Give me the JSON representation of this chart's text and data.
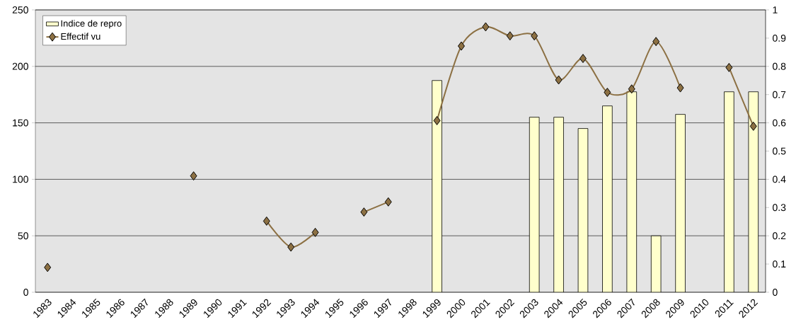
{
  "chart_data": {
    "type": "bar",
    "categories": [
      "1983",
      "1984",
      "1985",
      "1986",
      "1987",
      "1988",
      "1989",
      "1990",
      "1991",
      "1992",
      "1993",
      "1994",
      "1995",
      "1996",
      "1997",
      "1998",
      "1999",
      "2000",
      "2001",
      "2002",
      "2003",
      "2004",
      "2005",
      "2006",
      "2007",
      "2008",
      "2009",
      "2010",
      "2011",
      "2012"
    ],
    "series": [
      {
        "name": "Indice de repro",
        "axis": "y2",
        "color": "#ffffcc",
        "values": [
          null,
          null,
          null,
          null,
          null,
          null,
          null,
          null,
          null,
          null,
          null,
          null,
          null,
          null,
          null,
          null,
          0.75,
          null,
          null,
          null,
          0.62,
          0.62,
          0.58,
          0.66,
          0.71,
          0.2,
          0.63,
          null,
          0.71,
          0.71
        ]
      },
      {
        "name": "Effectif vu",
        "type": "line",
        "color": "#8c7043",
        "values": [
          22,
          null,
          null,
          null,
          null,
          null,
          103,
          null,
          null,
          63,
          40,
          53,
          null,
          71,
          80,
          null,
          152,
          218,
          235,
          227,
          227,
          188,
          207,
          177,
          180,
          222,
          181,
          null,
          199,
          147
        ]
      }
    ],
    "ylim": [
      0,
      250
    ],
    "yticks": [
      0,
      50,
      100,
      150,
      200,
      250
    ],
    "y2lim": [
      0,
      1
    ],
    "y2ticks": [
      0,
      0.1,
      0.2,
      0.3,
      0.4,
      0.5,
      0.6,
      0.7,
      0.8,
      0.9,
      1
    ],
    "grid": "y",
    "legend": "top left",
    "marker": "diamond"
  }
}
